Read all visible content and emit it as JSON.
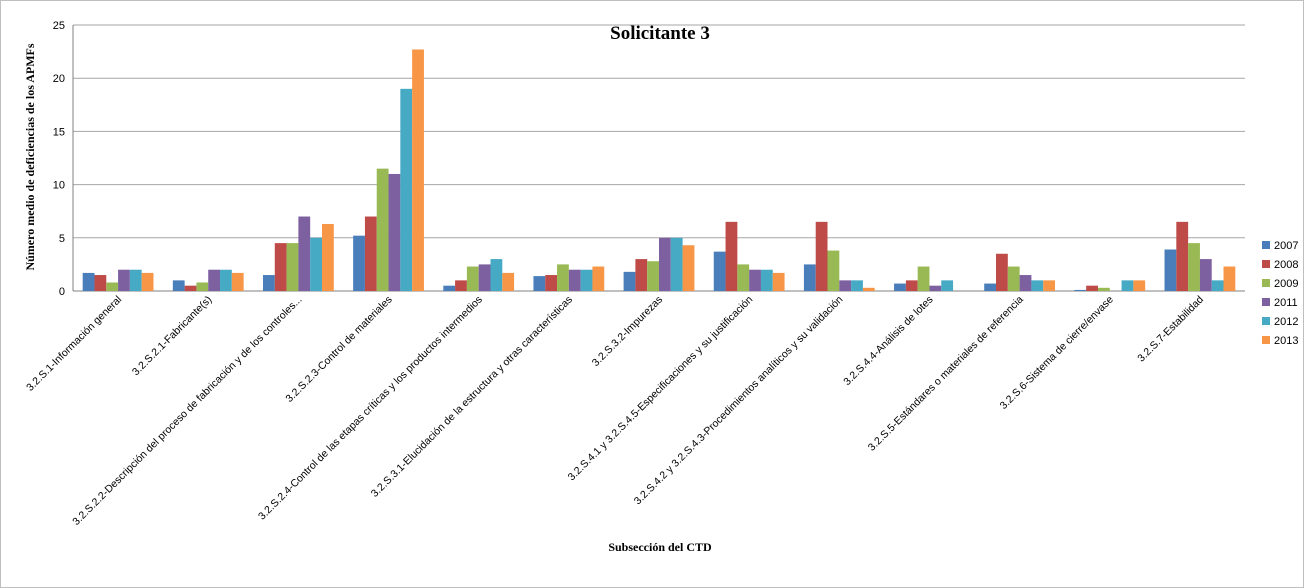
{
  "chart_data": {
    "type": "bar",
    "title": "Solicitante 3",
    "xlabel": "Subsección del CTD",
    "ylabel": "Número medio de deficiencias de los APMFs",
    "ylim": [
      0,
      25
    ],
    "yticks": [
      "0",
      "5",
      "10",
      "15",
      "20",
      "25"
    ],
    "grid": true,
    "legend_position": "right",
    "categories": [
      "3.2.S.1-Información general",
      "3.2.S.2.1-Fabricante(s)",
      "3.2.S.2.2-Descripción del proceso de fabricación y de los controles...",
      "3.2.S.2.3-Control de materiales",
      "3.2.S.2.4-Control de las etapas críticas y los productos intermedios",
      "3.2.S.3.1-Elucidación de la estructura y otras características",
      "3.2.S.3.2-Impurezas",
      "3.2.S.4.1 y 3.2.S.4.5-Especificaciones y su justificación",
      "3.2.S.4.2 y 3.2.S.4.3-Procedimientos analíticos y su validación",
      "3.2.S.4.4-Análisis de lotes",
      "3.2.S.5-Estándares o materiales de referencia",
      "3.2.S.6-Sistema de cierre/envase",
      "3.2.S.7-Estabilidad"
    ],
    "series": [
      {
        "name": "2007",
        "color": "#4a7ebb",
        "values": [
          1.7,
          1.0,
          1.5,
          5.2,
          0.5,
          1.4,
          1.8,
          3.7,
          2.5,
          0.7,
          0.7,
          0.1,
          3.9
        ]
      },
      {
        "name": "2008",
        "color": "#be4b48",
        "values": [
          1.5,
          0.5,
          4.5,
          7.0,
          1.0,
          1.5,
          3.0,
          6.5,
          6.5,
          1.0,
          3.5,
          0.5,
          6.5
        ]
      },
      {
        "name": "2009",
        "color": "#98b954",
        "values": [
          0.8,
          0.8,
          4.5,
          11.5,
          2.3,
          2.5,
          2.8,
          2.5,
          3.8,
          2.3,
          2.3,
          0.3,
          4.5
        ]
      },
      {
        "name": "2011",
        "color": "#7d60a0",
        "values": [
          2.0,
          2.0,
          7.0,
          11.0,
          2.5,
          2.0,
          5.0,
          2.0,
          1.0,
          0.5,
          1.5,
          0.0,
          3.0
        ]
      },
      {
        "name": "2012",
        "color": "#46aac5",
        "values": [
          2.0,
          2.0,
          5.0,
          19.0,
          3.0,
          2.0,
          5.0,
          2.0,
          1.0,
          1.0,
          1.0,
          1.0,
          1.0
        ]
      },
      {
        "name": "2013",
        "color": "#f79646",
        "values": [
          1.7,
          1.7,
          6.3,
          22.7,
          1.7,
          2.3,
          4.3,
          1.7,
          0.3,
          0.0,
          1.0,
          1.0,
          2.3
        ]
      }
    ]
  }
}
